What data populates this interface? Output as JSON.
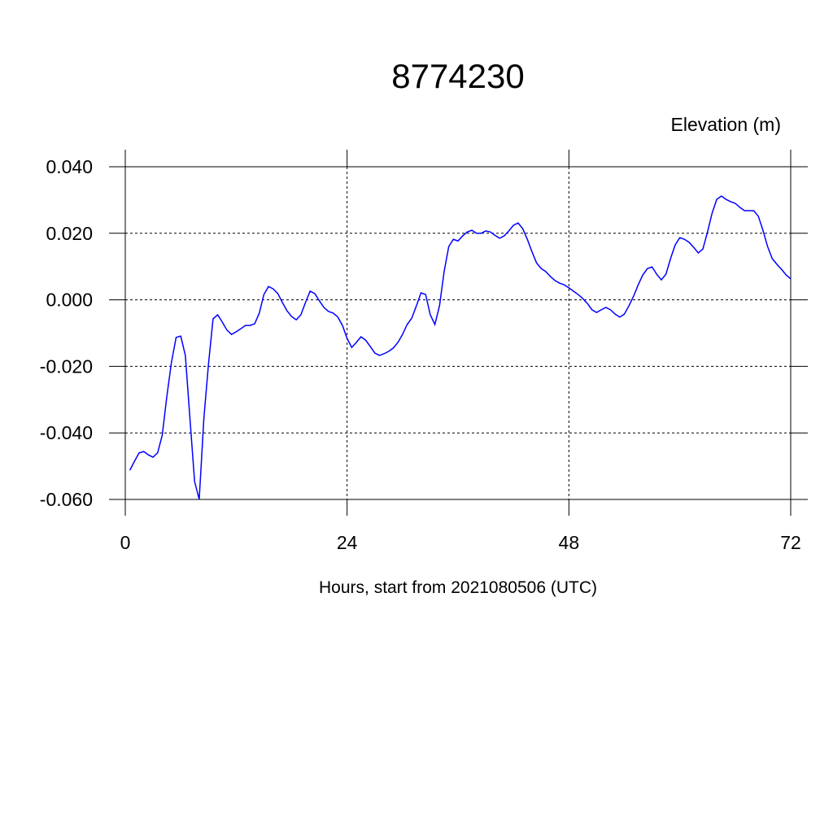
{
  "chart_data": {
    "type": "line",
    "title": "8774230",
    "subtitle": "Elevation (m)",
    "x_label": "Hours, start from 2021080506 (UTC)",
    "color": "#0000ff",
    "grid": true,
    "xlim": [
      0,
      72
    ],
    "xticks": [
      0,
      24,
      48,
      72
    ],
    "ylim": [
      -0.06,
      0.04
    ],
    "yticks": [
      {
        "value": -0.06,
        "label": "-0.060"
      },
      {
        "value": -0.04,
        "label": "-0.040"
      },
      {
        "value": -0.02,
        "label": "-0.020"
      },
      {
        "value": 0,
        "label": "0.000"
      },
      {
        "value": 0.02,
        "label": "0.020"
      },
      {
        "value": 0.04,
        "label": "0.040"
      }
    ],
    "x": [
      0.5,
      1,
      1.5,
      2,
      2.5,
      3,
      3.5,
      4,
      4.5,
      5,
      5.5,
      6,
      6.5,
      7,
      7.5,
      8,
      8.5,
      9,
      9.5,
      10,
      10.5,
      11,
      11.5,
      12,
      12.5,
      13,
      13.5,
      14,
      14.5,
      15,
      15.5,
      16,
      16.5,
      17,
      17.5,
      18,
      18.5,
      19,
      19.5,
      20,
      20.5,
      21,
      21.5,
      22,
      22.5,
      23,
      23.5,
      24,
      24.5,
      25,
      25.5,
      26,
      26.5,
      27,
      27.5,
      28,
      28.5,
      29,
      29.5,
      30,
      30.5,
      31,
      31.5,
      32,
      32.5,
      33,
      33.5,
      34,
      34.5,
      35,
      35.5,
      36,
      36.5,
      37,
      37.5,
      38,
      38.5,
      39,
      39.5,
      40,
      40.5,
      41,
      41.5,
      42,
      42.5,
      43,
      43.5,
      44,
      44.5,
      45,
      45.5,
      46,
      46.5,
      47,
      47.5,
      48,
      48.5,
      49,
      49.5,
      50,
      50.5,
      51,
      51.5,
      52,
      52.5,
      53,
      53.5,
      54,
      54.5,
      55,
      55.5,
      56,
      56.5,
      57,
      57.5,
      58,
      58.5,
      59,
      59.5,
      60,
      60.5,
      61,
      61.5,
      62,
      62.5,
      63,
      63.5,
      64,
      64.5,
      65,
      65.5,
      66,
      66.5,
      67,
      67.5,
      68,
      68.5,
      69,
      69.5,
      70,
      70.5,
      71,
      71.5,
      72
    ],
    "values": [
      -0.0512,
      -0.0485,
      -0.046,
      -0.0456,
      -0.0466,
      -0.0473,
      -0.046,
      -0.0407,
      -0.029,
      -0.0187,
      -0.0113,
      -0.0109,
      -0.0167,
      -0.0358,
      -0.0546,
      -0.06,
      -0.0358,
      -0.0194,
      -0.0057,
      -0.0045,
      -0.0067,
      -0.0091,
      -0.0104,
      -0.0096,
      -0.0087,
      -0.0077,
      -0.0077,
      -0.0072,
      -0.004,
      0.0016,
      0.004,
      0.0033,
      0.0019,
      -0.0008,
      -0.0033,
      -0.005,
      -0.006,
      -0.0045,
      -0.0008,
      0.0026,
      0.0019,
      -0.0003,
      -0.0023,
      -0.0035,
      -0.004,
      -0.0052,
      -0.0077,
      -0.0116,
      -0.0143,
      -0.0128,
      -0.0111,
      -0.0121,
      -0.014,
      -0.016,
      -0.0167,
      -0.0162,
      -0.0155,
      -0.0145,
      -0.0128,
      -0.0104,
      -0.0074,
      -0.0055,
      -0.0018,
      0.0021,
      0.0016,
      -0.0045,
      -0.0074,
      -0.0018,
      0.0085,
      0.016,
      0.0182,
      0.0177,
      0.0192,
      0.0204,
      0.0209,
      0.02,
      0.02,
      0.0207,
      0.0204,
      0.0194,
      0.0185,
      0.0192,
      0.0207,
      0.0224,
      0.0231,
      0.0214,
      0.0182,
      0.0145,
      0.0111,
      0.0094,
      0.0085,
      0.007,
      0.0058,
      0.005,
      0.0045,
      0.0036,
      0.0026,
      0.0016,
      0.0004,
      -0.0011,
      -0.003,
      -0.0038,
      -0.003,
      -0.0023,
      -0.003,
      -0.0043,
      -0.0052,
      -0.0043,
      -0.0018,
      0.0011,
      0.0045,
      0.0075,
      0.0094,
      0.0099,
      0.0077,
      0.006,
      0.0077,
      0.0124,
      0.0165,
      0.0187,
      0.0182,
      0.0173,
      0.0158,
      0.0141,
      0.0153,
      0.0204,
      0.0261,
      0.0302,
      0.0312,
      0.0302,
      0.0295,
      0.029,
      0.0278,
      0.0268,
      0.0268,
      0.0268,
      0.0251,
      0.0209,
      0.016,
      0.0124,
      0.0107,
      0.0092,
      0.0075,
      0.0063
    ]
  }
}
